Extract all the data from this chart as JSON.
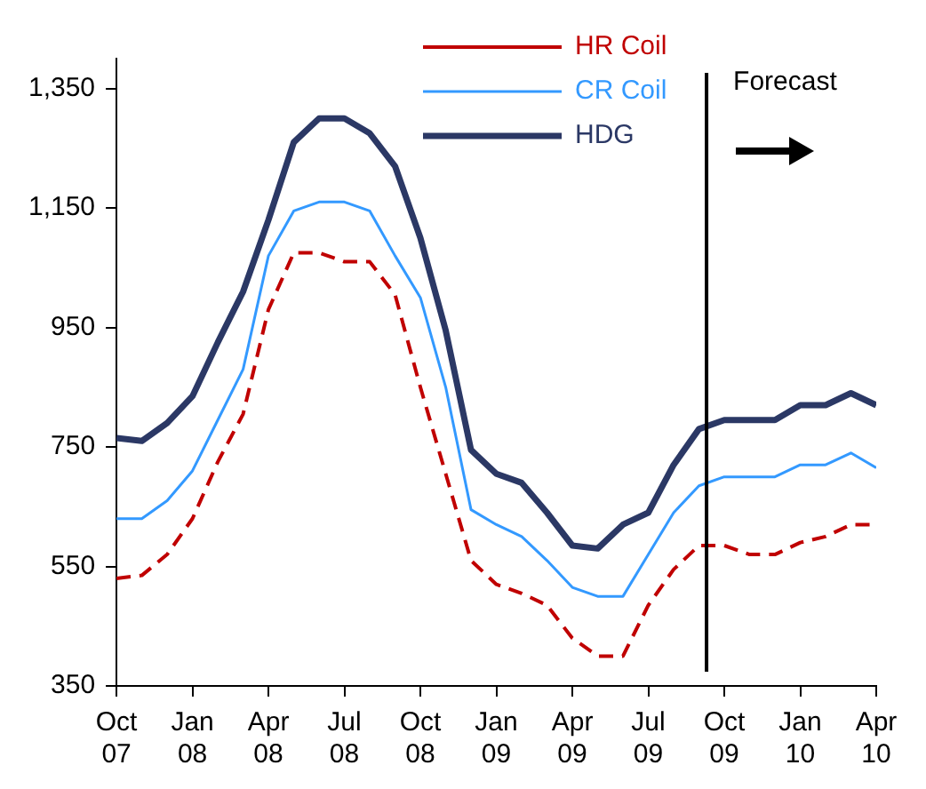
{
  "chart_data": {
    "type": "line",
    "x": [
      "2007-10",
      "2007-11",
      "2007-12",
      "2008-01",
      "2008-02",
      "2008-03",
      "2008-04",
      "2008-05",
      "2008-06",
      "2008-07",
      "2008-08",
      "2008-09",
      "2008-10",
      "2008-11",
      "2008-12",
      "2009-01",
      "2009-02",
      "2009-03",
      "2009-04",
      "2009-05",
      "2009-06",
      "2009-07",
      "2009-08",
      "2009-09",
      "2009-10",
      "2009-11",
      "2009-12",
      "2010-01",
      "2010-02",
      "2010-03",
      "2010-04"
    ],
    "series": [
      {
        "name": "HR Coil",
        "color": "#c00000",
        "line_style": "dashed",
        "values": [
          530,
          535,
          570,
          630,
          725,
          805,
          980,
          1075,
          1075,
          1060,
          1060,
          1005,
          850,
          705,
          560,
          520,
          505,
          485,
          430,
          400,
          400,
          485,
          545,
          585,
          585,
          570,
          570,
          590,
          600,
          620,
          620
        ]
      },
      {
        "name": "CR Coil",
        "color": "#3399ff",
        "line_style": "solid",
        "values": [
          630,
          630,
          660,
          710,
          795,
          880,
          1070,
          1145,
          1160,
          1160,
          1145,
          1070,
          1000,
          850,
          645,
          620,
          600,
          560,
          515,
          500,
          500,
          570,
          640,
          685,
          700,
          700,
          700,
          720,
          720,
          740,
          715
        ]
      },
      {
        "name": "HDG",
        "color": "#2b3865",
        "line_style": "solid",
        "values": [
          765,
          760,
          790,
          835,
          925,
          1010,
          1130,
          1260,
          1300,
          1300,
          1275,
          1220,
          1100,
          945,
          745,
          705,
          690,
          640,
          585,
          580,
          620,
          640,
          720,
          780,
          795,
          795,
          795,
          820,
          820,
          840,
          820
        ]
      }
    ],
    "xlim": [
      "2007-10",
      "2010-04"
    ],
    "xticks": [
      {
        "value": "2007-10",
        "label": "Oct 07"
      },
      {
        "value": "2008-01",
        "label": "Jan 08"
      },
      {
        "value": "2008-04",
        "label": "Apr 08"
      },
      {
        "value": "2008-07",
        "label": "Jul 08"
      },
      {
        "value": "2008-10",
        "label": "Oct 08"
      },
      {
        "value": "2009-01",
        "label": "Jan 09"
      },
      {
        "value": "2009-04",
        "label": "Apr 09"
      },
      {
        "value": "2009-07",
        "label": "Jul 09"
      },
      {
        "value": "2009-10",
        "label": "Oct 09"
      },
      {
        "value": "2010-01",
        "label": "Jan 10"
      },
      {
        "value": "2010-04",
        "label": "Apr 10"
      }
    ],
    "ylim": [
      350,
      1400
    ],
    "yticks": [
      350,
      550,
      750,
      950,
      {
        "value": 1150,
        "label": "1,150"
      },
      {
        "value": 1350,
        "label": "1,350"
      }
    ],
    "ref_lines": [
      {
        "axis": "x",
        "value": "2009-09-10",
        "label": "Forecast",
        "color": "#000000"
      }
    ],
    "grid": false,
    "legend": "top",
    "marker": "none"
  }
}
